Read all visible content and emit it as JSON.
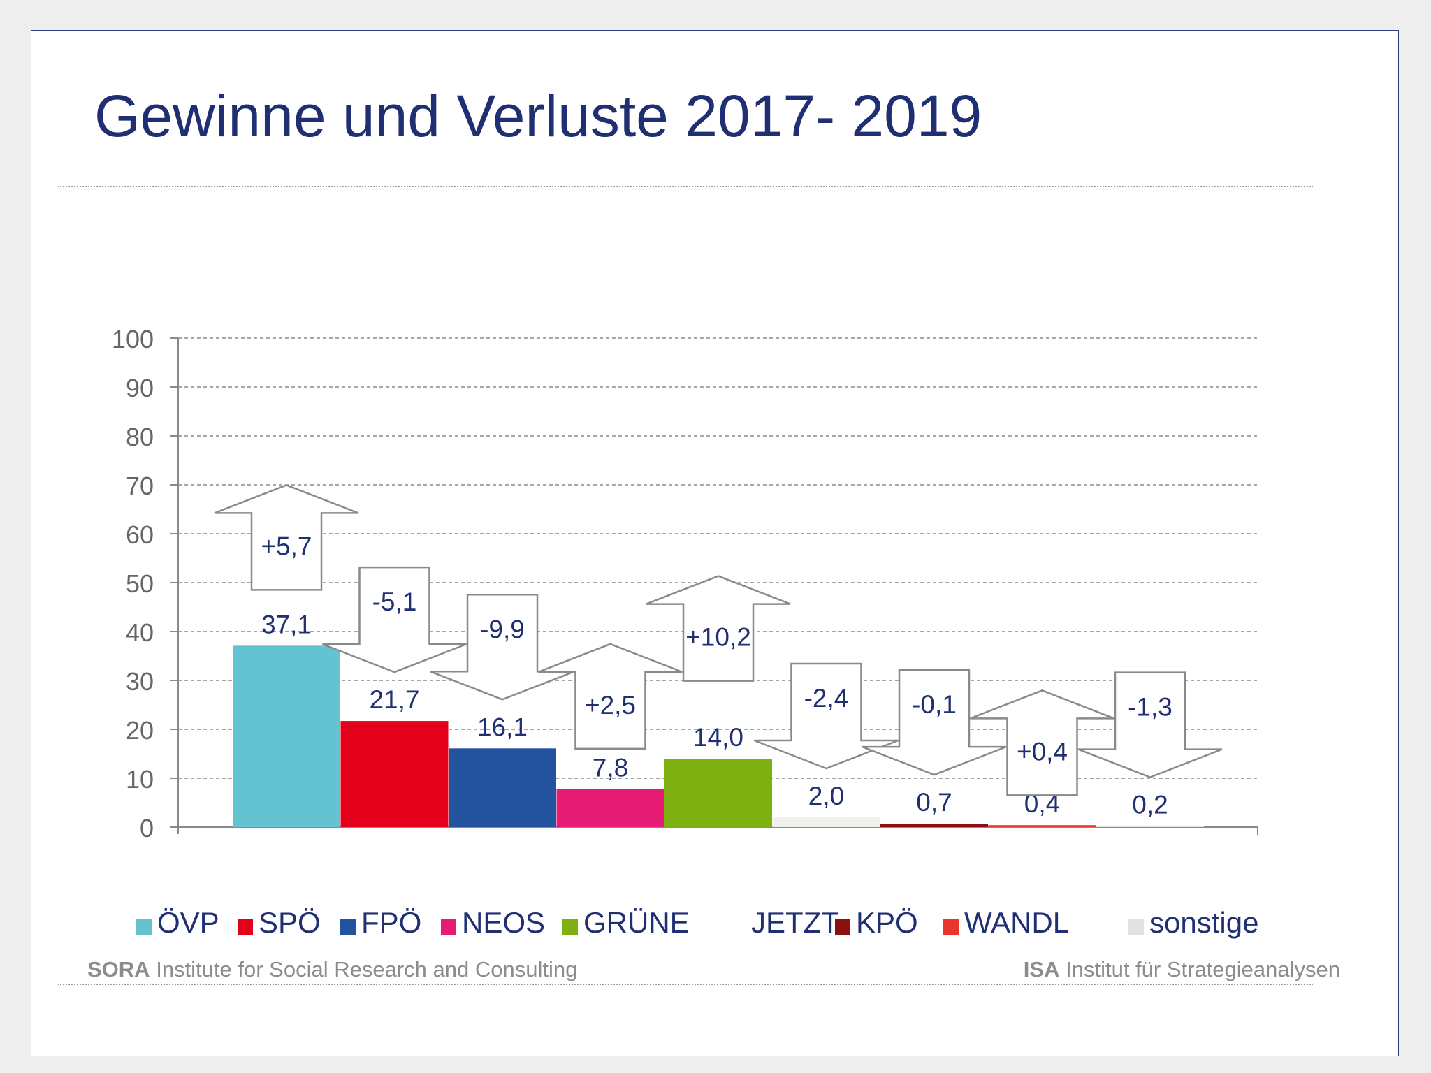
{
  "title": "Gewinne und Verluste 2017- 2019",
  "footer": {
    "left_bold": "SORA",
    "left_rest": "Institute for Social Research and Consulting",
    "right_bold": "ISA",
    "right_rest": "Institut für Strategieanalysen"
  },
  "chart_data": {
    "type": "bar",
    "categories": [
      "ÖVP",
      "SPÖ",
      "FPÖ",
      "NEOS",
      "GRÜNE",
      "JETZT",
      "KPÖ",
      "WANDL",
      "sonstige"
    ],
    "values": [
      37.1,
      21.7,
      16.1,
      7.8,
      14.0,
      2.0,
      0.7,
      0.4,
      0.2
    ],
    "value_labels": [
      "37,1",
      "21,7",
      "16,1",
      "7,8",
      "14,0",
      "2,0",
      "0,7",
      "0,4",
      "0,2"
    ],
    "changes": [
      5.7,
      -5.1,
      -9.9,
      2.5,
      10.2,
      -2.4,
      -0.1,
      0.4,
      -1.3
    ],
    "change_labels": [
      "+5,7",
      "-5,1",
      "-9,9",
      "+2,5",
      "+10,2",
      "-2,4",
      "-0,1",
      "+0,4",
      "-1,3"
    ],
    "colors": [
      "#63c3d1",
      "#e2001a",
      "#23529f",
      "#e61c74",
      "#7fb011",
      "#f2f0ea",
      "#8b1010",
      "#e8362c",
      "#e2e2e2"
    ],
    "ylim": [
      0,
      100
    ],
    "yticks": [
      0,
      10,
      20,
      30,
      40,
      50,
      60,
      70,
      80,
      90,
      100
    ],
    "grid": true,
    "legend_position": "bottom"
  }
}
